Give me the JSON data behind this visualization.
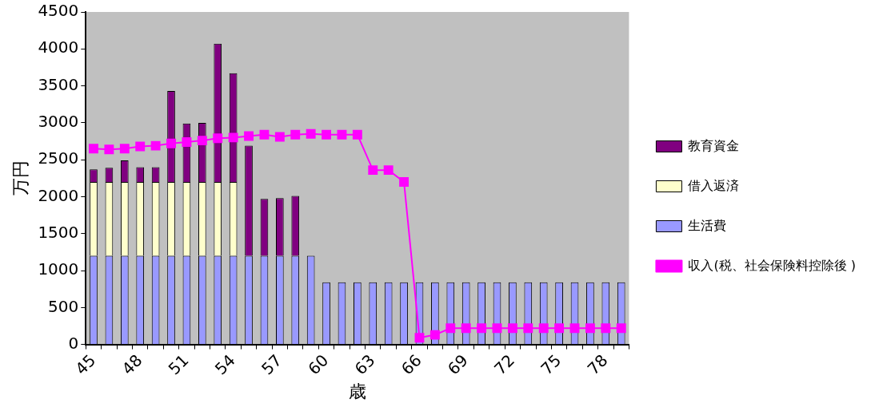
{
  "chart_data": {
    "type": "bar",
    "stacked": true,
    "xlabel": "歳",
    "ylabel": "万円",
    "categories": [
      "45",
      null,
      null,
      "48",
      null,
      null,
      "51",
      null,
      null,
      "54",
      null,
      null,
      "57",
      null,
      null,
      "60",
      null,
      null,
      "63",
      null,
      null,
      "66",
      null,
      null,
      "69",
      null,
      null,
      "72",
      null,
      null,
      "75",
      null,
      null,
      "78",
      null
    ],
    "ylim": [
      0,
      4500
    ],
    "yticks": [
      0,
      500,
      1000,
      1500,
      2000,
      2500,
      3000,
      3500,
      4000,
      4500
    ],
    "grid": false,
    "legend": "right",
    "marker": "square",
    "line_style": "solid",
    "series": [
      {
        "name": "生活費",
        "color": "#9999ff",
        "values": [
          1200,
          1200,
          1200,
          1200,
          1200,
          1200,
          1200,
          1200,
          1200,
          1200,
          1200,
          1200,
          1200,
          1200,
          1200,
          840,
          840,
          840,
          840,
          840,
          840,
          840,
          840,
          840,
          840,
          840,
          840,
          840,
          840,
          840,
          840,
          840,
          840,
          840,
          840
        ]
      },
      {
        "name": "借入返済",
        "color": "#ffffcc",
        "values": [
          1000,
          1000,
          1000,
          1000,
          1000,
          1000,
          1000,
          1000,
          1000,
          1000,
          null,
          null,
          null,
          null,
          null,
          null,
          null,
          null,
          null,
          null,
          null,
          null,
          null,
          null,
          null,
          null,
          null,
          null,
          null,
          null,
          null,
          null,
          null,
          null,
          null
        ]
      },
      {
        "name": "教育資金",
        "color": "#800080",
        "values": [
          170,
          190,
          290,
          200,
          200,
          1230,
          790,
          800,
          1870,
          1470,
          1490,
          770,
          780,
          810,
          null,
          null,
          null,
          null,
          null,
          null,
          null,
          null,
          null,
          null,
          null,
          null,
          null,
          null,
          null,
          null,
          null,
          null,
          null,
          null,
          null
        ]
      },
      {
        "name": "収入(税、社会保険料控除後 )",
        "type": "line",
        "color": "#ff00ff",
        "values": [
          2650,
          2640,
          2650,
          2680,
          2690,
          2720,
          2740,
          2760,
          2790,
          2800,
          2820,
          2840,
          2810,
          2840,
          2850,
          2840,
          2840,
          2840,
          2360,
          2360,
          2200,
          90,
          130,
          220,
          220,
          220,
          220,
          220,
          220,
          220,
          220,
          220,
          220,
          220,
          220
        ]
      }
    ]
  }
}
